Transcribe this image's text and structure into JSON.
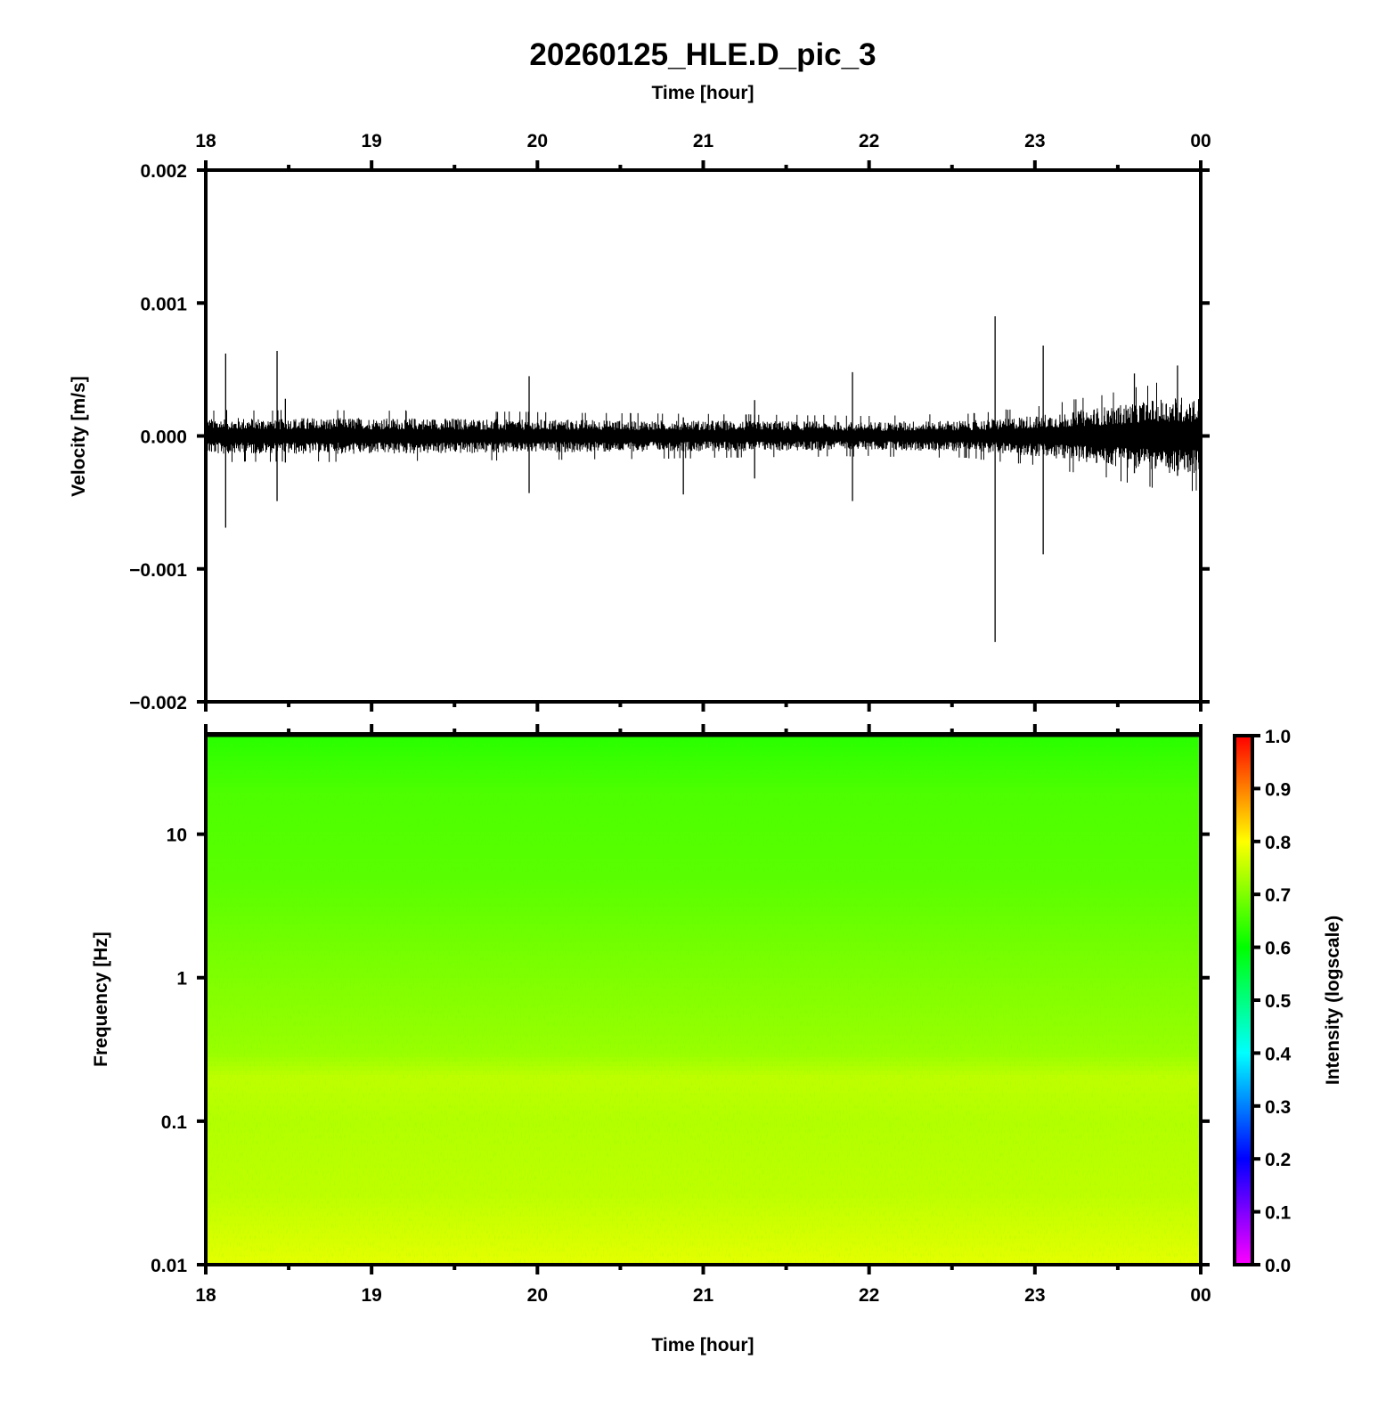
{
  "chart_data": [
    {
      "type": "line",
      "title": "20260125_HLE.D_pic_3",
      "xlabel_top": "Time [hour]",
      "ylabel": "Velocity [m/s]",
      "x_ticks": [
        "18",
        "19",
        "20",
        "21",
        "22",
        "23",
        "00"
      ],
      "xlim_hours": [
        18,
        24
      ],
      "ylim": [
        -0.002,
        0.002
      ],
      "y_ticks": [
        "0.002",
        "0.001",
        "0.000",
        "−0.001",
        "−0.002"
      ],
      "y_tick_values": [
        0.002,
        0.001,
        0.0,
        -0.001,
        -0.002
      ],
      "line_color": "#000000",
      "noise_envelope": [
        {
          "hour": 18.0,
          "amplitude": 0.00014
        },
        {
          "hour": 19.0,
          "amplitude": 0.00014
        },
        {
          "hour": 20.0,
          "amplitude": 0.00013
        },
        {
          "hour": 21.0,
          "amplitude": 0.00012
        },
        {
          "hour": 22.0,
          "amplitude": 0.00011
        },
        {
          "hour": 22.6,
          "amplitude": 0.00012
        },
        {
          "hour": 23.0,
          "amplitude": 0.00016
        },
        {
          "hour": 23.5,
          "amplitude": 0.00024
        },
        {
          "hour": 23.8,
          "amplitude": 0.0003
        },
        {
          "hour": 24.0,
          "amplitude": 0.0003
        }
      ],
      "spikes": [
        {
          "hour": 18.12,
          "max": 0.00062,
          "min": -0.00069
        },
        {
          "hour": 18.43,
          "max": 0.00064,
          "min": -0.00049
        },
        {
          "hour": 18.48,
          "max": 0.00028,
          "min": -0.0002
        },
        {
          "hour": 19.95,
          "max": 0.00045,
          "min": -0.00043
        },
        {
          "hour": 20.88,
          "max": 0.00014,
          "min": -0.00044
        },
        {
          "hour": 21.31,
          "max": 0.00027,
          "min": -0.00032
        },
        {
          "hour": 21.9,
          "max": 0.00048,
          "min": -0.00049
        },
        {
          "hour": 22.76,
          "max": 0.0009,
          "min": -0.00155
        },
        {
          "hour": 23.05,
          "max": 0.00068,
          "min": -0.00089
        },
        {
          "hour": 23.6,
          "max": 0.00047,
          "min": -0.00028
        },
        {
          "hour": 23.86,
          "max": 0.00053,
          "min": -0.0003
        }
      ]
    },
    {
      "type": "heatmap",
      "xlabel": "Time [hour]",
      "ylabel": "Frequency [Hz]",
      "x_ticks": [
        "18",
        "19",
        "20",
        "21",
        "22",
        "23",
        "00"
      ],
      "xlim_hours": [
        18,
        24
      ],
      "y_scale": "log",
      "ylim": [
        0.01,
        50
      ],
      "y_ticks": [
        "10",
        "1",
        "0.1",
        "0.01"
      ],
      "y_tick_values": [
        10,
        1,
        0.1,
        0.01
      ],
      "colorbar": {
        "label": "Intensity (logscale)",
        "range": [
          0.0,
          1.0
        ],
        "ticks": [
          "1.0",
          "0.9",
          "0.8",
          "0.7",
          "0.6",
          "0.5",
          "0.4",
          "0.3",
          "0.2",
          "0.1",
          "0.0"
        ],
        "colormap": [
          "#ff00ff",
          "#0000ff",
          "#00ffff",
          "#00ff00",
          "#ffff00",
          "#ff0000"
        ]
      },
      "intensity_profile": [
        {
          "freq_hz": 50,
          "intensity": 0.63
        },
        {
          "freq_hz": 20,
          "intensity": 0.66
        },
        {
          "freq_hz": 5,
          "intensity": 0.67
        },
        {
          "freq_hz": 1,
          "intensity": 0.7
        },
        {
          "freq_hz": 0.3,
          "intensity": 0.72
        },
        {
          "freq_hz": 0.2,
          "intensity": 0.75
        },
        {
          "freq_hz": 0.1,
          "intensity": 0.74
        },
        {
          "freq_hz": 0.03,
          "intensity": 0.75
        },
        {
          "freq_hz": 0.01,
          "intensity": 0.78
        }
      ]
    }
  ]
}
